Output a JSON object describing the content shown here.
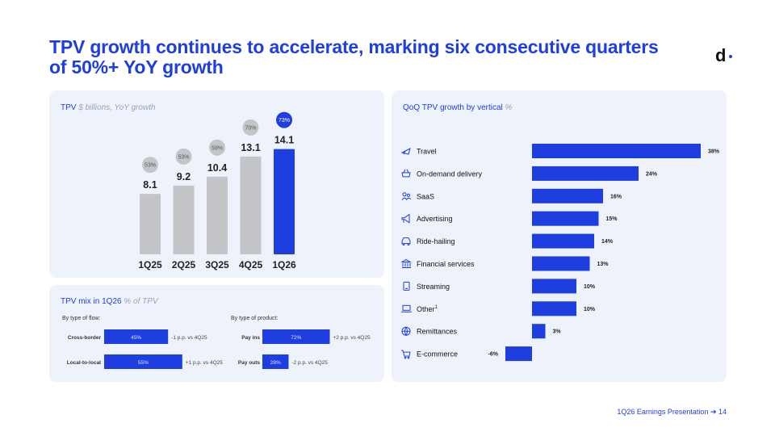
{
  "title": "TPV growth continues to accelerate, marking six consecutive quarters of 50%+ YoY growth",
  "logo_text": "d",
  "footer": "1Q26 Earnings Presentation ➔  14",
  "colors": {
    "accent": "#1f3ee0",
    "gray_bar": "#c4c5c9",
    "card": "#eef2fb"
  },
  "tpv_card": {
    "label": "TPV",
    "sublabel": "$ billions, YoY growth"
  },
  "mix_card": {
    "label": "TPV mix in 1Q26",
    "sublabel": "% of TPV",
    "flow_head": "By type of flow:",
    "product_head": "By type of product:"
  },
  "qoq_card": {
    "label": "QoQ TPV growth by vertical",
    "sublabel": "%"
  },
  "chart_data": [
    {
      "type": "bar",
      "title": "TPV",
      "subtitle": "$ billions, YoY growth",
      "categories": [
        "1Q25",
        "2Q25",
        "3Q25",
        "4Q25",
        "1Q26"
      ],
      "values": [
        8.1,
        9.2,
        10.4,
        13.1,
        14.1
      ],
      "value_labels": [
        "8.1",
        "9.2",
        "10.4",
        "13.1",
        "14.1"
      ],
      "yoy_growth": [
        53,
        53,
        59,
        70,
        73
      ],
      "growth_labels": [
        "53%",
        "53%",
        "59%",
        "70%",
        "73%"
      ],
      "highlight_index": 4
    },
    {
      "type": "bar",
      "orientation": "horizontal",
      "stacked": true,
      "title": "By type of flow:",
      "categories": [
        "Cross-border",
        "Local-to-local"
      ],
      "values": [
        45,
        55
      ],
      "value_labels": [
        "45%",
        "55%"
      ],
      "annotations": [
        "-1 p.p. vs 4Q25",
        "+1 p.p. vs 4Q25"
      ]
    },
    {
      "type": "bar",
      "orientation": "horizontal",
      "stacked": true,
      "title": "By type of product:",
      "categories": [
        "Pay ins",
        "Pay outs"
      ],
      "values": [
        72,
        28
      ],
      "value_labels": [
        "72%",
        "28%"
      ],
      "annotations": [
        "+2 p.p. vs 4Q25",
        "-2 p.p. vs 4Q25"
      ]
    },
    {
      "type": "bar",
      "orientation": "horizontal",
      "title": "QoQ TPV growth by vertical",
      "subtitle": "%",
      "categories": [
        "Travel",
        "On-demand delivery",
        "SaaS",
        "Advertising",
        "Ride-hailing",
        "Financial services",
        "Streaming",
        "Other",
        "Remittances",
        "E-commerce"
      ],
      "category_superscripts": [
        "",
        "",
        "",
        "",
        "",
        "",
        "",
        "1",
        "",
        ""
      ],
      "icons": [
        "plane-icon",
        "basket-icon",
        "people-icon",
        "megaphone-icon",
        "car-icon",
        "bank-icon",
        "phone-icon",
        "laptop-icon",
        "globe-icon",
        "cart-icon"
      ],
      "values": [
        38,
        24,
        16,
        15,
        14,
        13,
        10,
        10,
        3,
        -6
      ],
      "value_labels": [
        "38%",
        "24%",
        "16%",
        "15%",
        "14%",
        "13%",
        "10%",
        "10%",
        "3%",
        "-6%"
      ]
    }
  ]
}
